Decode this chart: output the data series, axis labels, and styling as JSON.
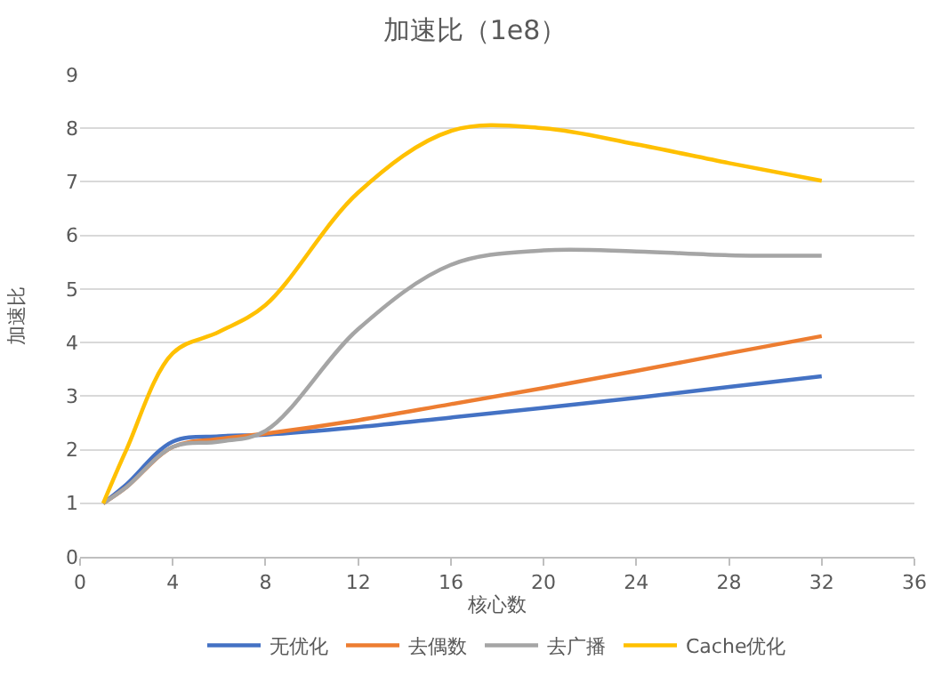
{
  "chart_data": {
    "type": "line",
    "title": "加速比（1e8）",
    "xlabel": "核心数",
    "ylabel": "加速比",
    "x": [
      1,
      2,
      4,
      6,
      8,
      12,
      16,
      20,
      24,
      28,
      32
    ],
    "series": [
      {
        "name": "无优化",
        "color": "#4472c4",
        "values": [
          1,
          1.35,
          2.15,
          2.25,
          2.28,
          2.42,
          2.6,
          2.78,
          2.97,
          3.17,
          3.37
        ]
      },
      {
        "name": "去偶数",
        "color": "#ed7d31",
        "values": [
          1,
          1.3,
          2.05,
          2.2,
          2.3,
          2.55,
          2.85,
          3.15,
          3.47,
          3.8,
          4.12
        ]
      },
      {
        "name": "去广播",
        "color": "#a5a5a5",
        "values": [
          1,
          1.3,
          2.05,
          2.15,
          2.35,
          4.25,
          5.45,
          5.72,
          5.7,
          5.63,
          5.62
        ]
      },
      {
        "name": "Cache优化",
        "color": "#ffc000",
        "values": [
          1,
          2.0,
          3.8,
          4.2,
          4.7,
          6.8,
          7.95,
          8.0,
          7.7,
          7.35,
          7.02
        ]
      }
    ],
    "xlim": [
      0,
      36
    ],
    "xticks": [
      0,
      4,
      8,
      12,
      16,
      20,
      24,
      28,
      32,
      36
    ],
    "ylim": [
      0,
      9
    ],
    "yticks": [
      0,
      1,
      2,
      3,
      4,
      5,
      6,
      7,
      8,
      9
    ],
    "grid": "y",
    "legend": "bottom",
    "marker": "none",
    "line_style": "solid"
  }
}
